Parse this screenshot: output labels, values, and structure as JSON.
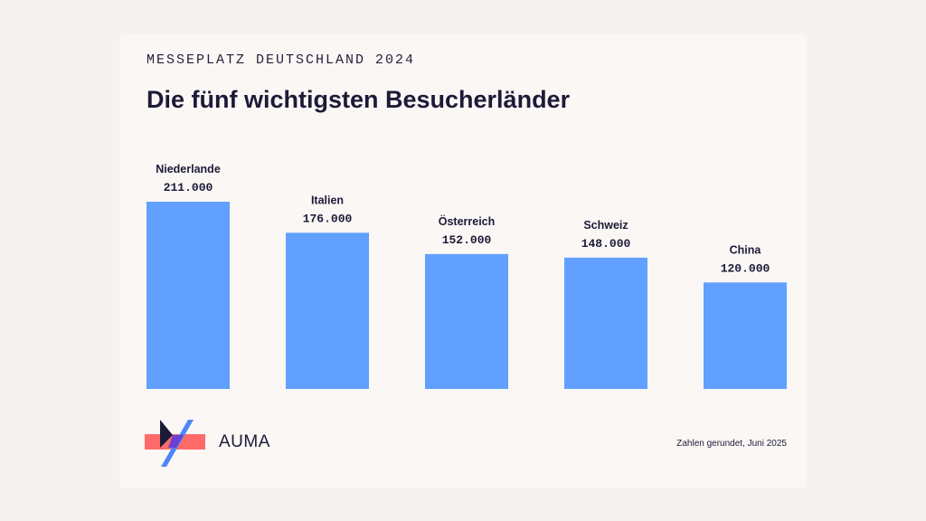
{
  "header": {
    "eyebrow": "MESSEPLATZ DEUTSCHLAND 2024"
  },
  "footer": {
    "brand": "AUMA",
    "note": "Zahlen gerundet, Juni 2025"
  },
  "colors": {
    "bar": "#61a0ff",
    "text": "#1d1a38",
    "logo_coral": "#ff6b6b",
    "logo_blue": "#4f86f7",
    "logo_navy": "#1d1a38",
    "logo_purple": "#6b3fd1"
  },
  "logo": {
    "icon": "auma-logo-icon"
  },
  "chart_data": {
    "type": "bar",
    "title": "Die fünf wichtigsten Besucherländer",
    "categories": [
      "Niederlande",
      "Italien",
      "Österreich",
      "Schweiz",
      "China"
    ],
    "values": [
      211000,
      176000,
      152000,
      148000,
      120000
    ],
    "value_labels": [
      "211.000",
      "176.000",
      "152.000",
      "148.000",
      "120.000"
    ],
    "ylim": [
      0,
      211000
    ],
    "xlabel": "",
    "ylabel": "",
    "grid": false,
    "legend": "none"
  }
}
